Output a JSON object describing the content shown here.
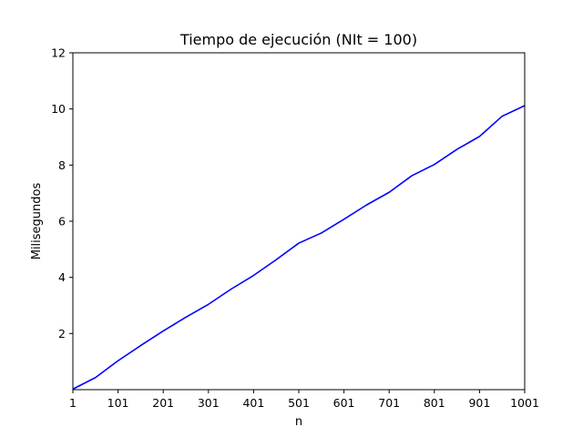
{
  "chart_data": {
    "type": "line",
    "title": "Tiempo de ejecución (NIt = 100)",
    "xlabel": "n",
    "ylabel": "Milisegundos",
    "xlim": [
      1,
      1001
    ],
    "ylim": [
      0.0,
      12
    ],
    "x_ticks": [
      1,
      101,
      201,
      301,
      401,
      501,
      601,
      701,
      801,
      901,
      1001
    ],
    "y_ticks": [
      2,
      4,
      6,
      8,
      10,
      12
    ],
    "grid": false,
    "legend": "none",
    "series": [
      {
        "color": "#0000ff",
        "x": [
          1,
          51,
          101,
          151,
          201,
          251,
          301,
          351,
          401,
          451,
          501,
          551,
          601,
          651,
          701,
          751,
          801,
          851,
          901,
          951,
          1001
        ],
        "y": [
          0.02,
          0.43,
          1.03,
          1.57,
          2.09,
          2.58,
          3.04,
          3.58,
          4.07,
          4.63,
          5.22,
          5.58,
          6.07,
          6.58,
          7.03,
          7.62,
          8.02,
          8.56,
          9.02,
          9.74,
          10.12
        ]
      }
    ]
  }
}
